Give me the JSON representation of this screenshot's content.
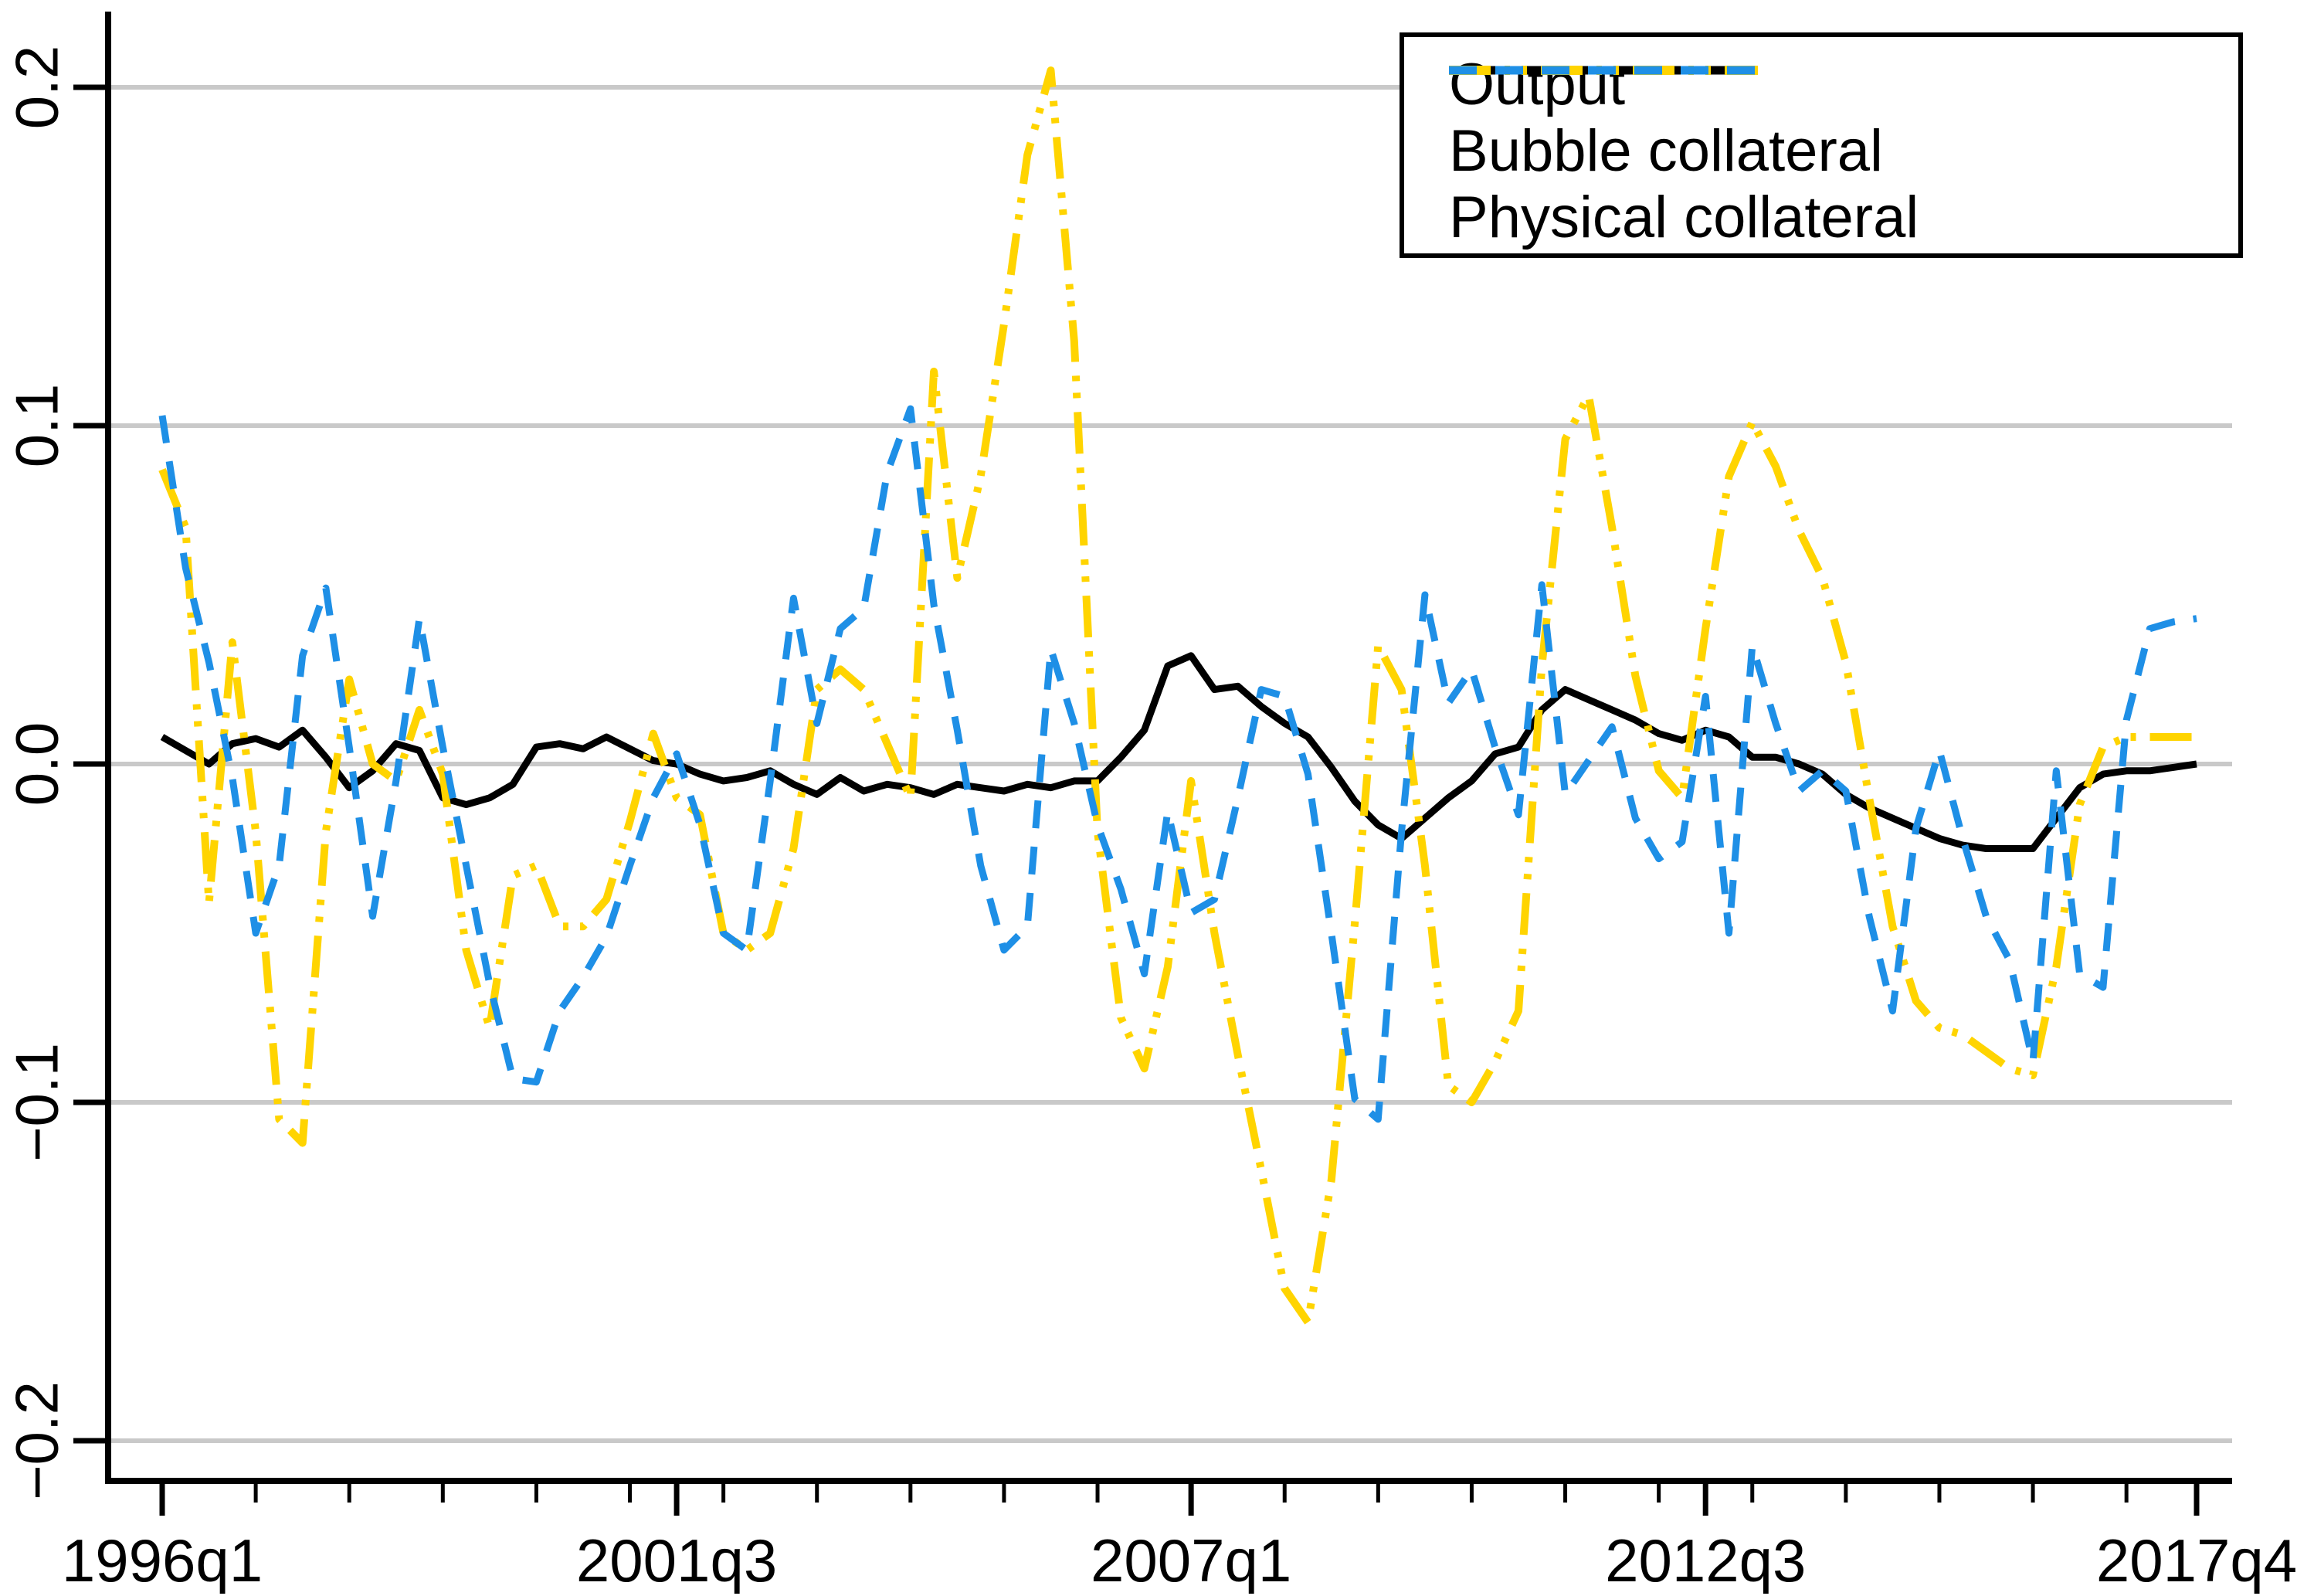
{
  "chart_data": {
    "type": "line",
    "title": "",
    "xlabel": "",
    "ylabel": "",
    "x_start": "1996q1",
    "x_end": "2017q4",
    "frequency": "quarterly",
    "ylim": [
      -0.22,
      0.22
    ],
    "grid": "horizontal",
    "legend_position": "top-right",
    "background": "#ffffff",
    "gridline_color": "#c9c9c9",
    "axis_color": "#000000",
    "categories": [
      "1996q1",
      "1996q2",
      "1996q3",
      "1996q4",
      "1997q1",
      "1997q2",
      "1997q3",
      "1997q4",
      "1998q1",
      "1998q2",
      "1998q3",
      "1998q4",
      "1999q1",
      "1999q2",
      "1999q3",
      "1999q4",
      "2000q1",
      "2000q2",
      "2000q3",
      "2000q4",
      "2001q1",
      "2001q2",
      "2001q3",
      "2001q4",
      "2002q1",
      "2002q2",
      "2002q3",
      "2002q4",
      "2003q1",
      "2003q2",
      "2003q3",
      "2003q4",
      "2004q1",
      "2004q2",
      "2004q3",
      "2004q4",
      "2005q1",
      "2005q2",
      "2005q3",
      "2005q4",
      "2006q1",
      "2006q2",
      "2006q3",
      "2006q4",
      "2007q1",
      "2007q2",
      "2007q3",
      "2007q4",
      "2008q1",
      "2008q2",
      "2008q3",
      "2008q4",
      "2009q1",
      "2009q2",
      "2009q3",
      "2009q4",
      "2010q1",
      "2010q2",
      "2010q3",
      "2010q4",
      "2011q1",
      "2011q2",
      "2011q3",
      "2011q4",
      "2012q1",
      "2012q2",
      "2012q3",
      "2012q4",
      "2013q1",
      "2013q2",
      "2013q3",
      "2013q4",
      "2014q1",
      "2014q2",
      "2014q3",
      "2014q4",
      "2015q1",
      "2015q2",
      "2015q3",
      "2015q4",
      "2016q1",
      "2016q2",
      "2016q3",
      "2016q4",
      "2017q1",
      "2017q2",
      "2017q3",
      "2017q4"
    ],
    "series": [
      {
        "name": "Output",
        "color": "#000000",
        "dash": "solid",
        "width": 9,
        "values": [
          0.008,
          0.004,
          0.0,
          0.006,
          0.0075,
          0.005,
          0.01,
          0.002,
          -0.007,
          -0.002,
          0.006,
          0.004,
          -0.01,
          -0.012,
          -0.01,
          -0.006,
          0.005,
          0.006,
          0.0045,
          0.008,
          0.0045,
          0.001,
          0.0,
          -0.003,
          -0.005,
          -0.004,
          -0.002,
          -0.006,
          -0.009,
          -0.004,
          -0.008,
          -0.006,
          -0.007,
          -0.009,
          -0.006,
          -0.007,
          -0.008,
          -0.006,
          -0.007,
          -0.005,
          -0.005,
          0.002,
          0.01,
          0.029,
          0.032,
          0.022,
          0.023,
          0.017,
          0.012,
          0.008,
          -0.001,
          -0.011,
          -0.018,
          -0.022,
          -0.016,
          -0.01,
          -0.005,
          0.003,
          0.005,
          0.016,
          0.022,
          0.019,
          0.016,
          0.013,
          0.009,
          0.007,
          0.01,
          0.008,
          0.002,
          0.002,
          0.0,
          -0.003,
          -0.009,
          -0.013,
          -0.016,
          -0.019,
          -0.022,
          -0.024,
          -0.025,
          -0.025,
          -0.025,
          -0.016,
          -0.007,
          -0.003,
          -0.002,
          -0.002,
          -0.001,
          0.0
        ]
      },
      {
        "name": "Bubble collateral",
        "color": "#FFD400",
        "dash": "dash-dot-dot",
        "width": 10,
        "values": [
          0.087,
          0.07,
          -0.041,
          0.036,
          -0.02,
          -0.105,
          -0.112,
          -0.02,
          0.025,
          0.0,
          -0.005,
          0.016,
          -0.003,
          -0.055,
          -0.078,
          -0.033,
          -0.03,
          -0.048,
          -0.048,
          -0.04,
          -0.017,
          0.009,
          -0.01,
          -0.015,
          -0.05,
          -0.055,
          -0.05,
          -0.025,
          0.022,
          0.028,
          0.022,
          0.006,
          -0.01,
          0.116,
          0.055,
          0.085,
          0.13,
          0.18,
          0.205,
          0.125,
          -0.02,
          -0.075,
          -0.09,
          -0.06,
          -0.005,
          -0.05,
          -0.086,
          -0.12,
          -0.155,
          -0.165,
          -0.123,
          -0.047,
          0.035,
          0.022,
          -0.03,
          -0.095,
          -0.1,
          -0.088,
          -0.073,
          0.029,
          0.096,
          0.109,
          0.07,
          0.026,
          -0.002,
          -0.01,
          0.04,
          0.085,
          0.101,
          0.088,
          0.069,
          0.055,
          0.03,
          -0.01,
          -0.048,
          -0.07,
          -0.078,
          -0.08,
          -0.085,
          -0.09,
          -0.092,
          -0.06,
          -0.012,
          0.005,
          0.008,
          0.008,
          0.008,
          0.008
        ]
      },
      {
        "name": "Physical collateral",
        "color": "#1E8FE6",
        "dash": "dashed",
        "width": 9,
        "values": [
          0.103,
          0.058,
          0.03,
          -0.004,
          -0.05,
          -0.03,
          0.032,
          0.052,
          0.005,
          -0.045,
          -0.005,
          0.043,
          0.005,
          -0.03,
          -0.065,
          -0.093,
          -0.094,
          -0.073,
          -0.063,
          -0.051,
          -0.03,
          -0.01,
          0.003,
          -0.018,
          -0.05,
          -0.055,
          -0.005,
          0.049,
          0.012,
          0.04,
          0.046,
          0.086,
          0.105,
          0.047,
          0.01,
          -0.03,
          -0.055,
          -0.048,
          0.034,
          0.012,
          -0.018,
          -0.037,
          -0.062,
          -0.014,
          -0.044,
          -0.04,
          -0.01,
          0.022,
          0.02,
          -0.003,
          -0.05,
          -0.099,
          -0.105,
          -0.02,
          0.05,
          0.018,
          0.028,
          0.005,
          -0.015,
          0.053,
          -0.009,
          0.001,
          0.011,
          -0.016,
          -0.028,
          -0.023,
          0.02,
          -0.05,
          0.035,
          0.012,
          -0.008,
          -0.002,
          -0.008,
          -0.045,
          -0.073,
          -0.019,
          0.004,
          -0.022,
          -0.045,
          -0.058,
          -0.088,
          -0.002,
          -0.062,
          -0.066,
          0.013,
          0.04,
          0.042,
          0.043
        ]
      }
    ],
    "y_ticks": [
      {
        "value": 0.2,
        "label": "0.2"
      },
      {
        "value": 0.1,
        "label": "0.1"
      },
      {
        "value": 0.0,
        "label": "0.0"
      },
      {
        "value": -0.1,
        "label": "−0.1"
      },
      {
        "value": -0.2,
        "label": "−0.2"
      }
    ],
    "x_major_ticks": [
      {
        "index": 0,
        "label": "1996q1"
      },
      {
        "index": 22,
        "label": "2001q3"
      },
      {
        "index": 44,
        "label": "2007q1"
      },
      {
        "index": 66,
        "label": "2012q3"
      },
      {
        "index": 87,
        "label": "2017q4"
      }
    ],
    "x_minor_tick_every_quarters": 4,
    "legend": {
      "entries": [
        "Output",
        "Bubble collateral",
        "Physical collateral"
      ]
    }
  }
}
